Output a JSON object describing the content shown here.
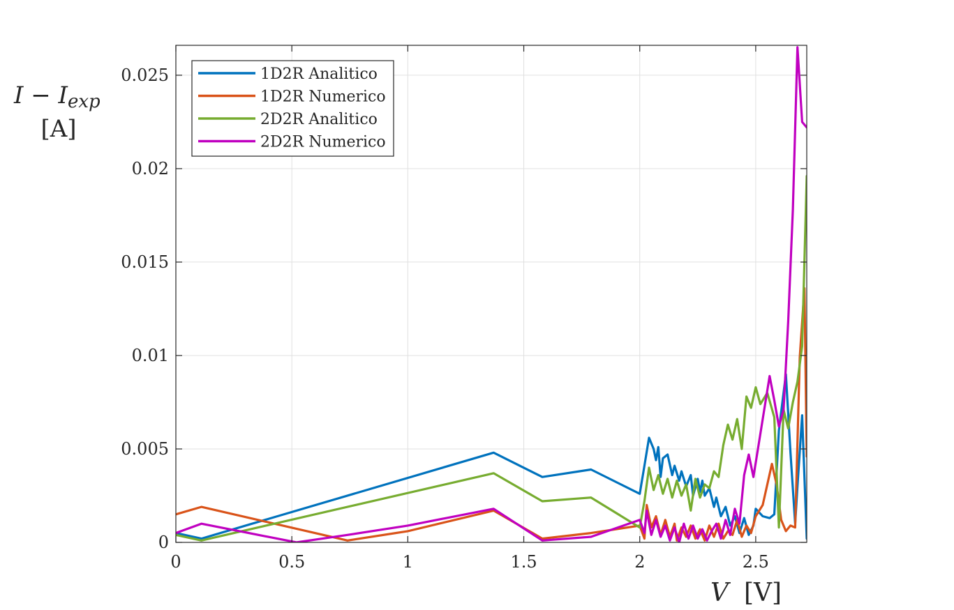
{
  "chart_data": {
    "type": "line",
    "ylabel_main": "I − I",
    "ylabel_sub": "exp",
    "ylabel_unit": "[A]",
    "xlabel_main": "V",
    "xlabel_unit": "[V]",
    "xlim": [
      0,
      2.72
    ],
    "ylim": [
      0,
      0.0266
    ],
    "xticks": [
      0,
      0.5,
      1,
      1.5,
      2,
      2.5
    ],
    "xtick_labels": [
      "0",
      "0.5",
      "1",
      "1.5",
      "2",
      "2.5"
    ],
    "yticks": [
      0,
      0.005,
      0.01,
      0.015,
      0.02,
      0.025
    ],
    "ytick_labels": [
      "0",
      "0.005",
      "0.01",
      "0.015",
      "0.02",
      "0.025"
    ],
    "grid": true,
    "legend_position": "top-left",
    "series": [
      {
        "name": "1D2R Analitico",
        "color": "#0072BD",
        "x": [
          0,
          0.11,
          1.37,
          1.58,
          1.79,
          2.0,
          2.02,
          2.04,
          2.06,
          2.07,
          2.08,
          2.09,
          2.1,
          2.12,
          2.14,
          2.15,
          2.17,
          2.18,
          2.2,
          2.22,
          2.23,
          2.25,
          2.26,
          2.27,
          2.28,
          2.3,
          2.32,
          2.33,
          2.35,
          2.37,
          2.39,
          2.41,
          2.43,
          2.45,
          2.47,
          2.49,
          2.5,
          2.53,
          2.56,
          2.58,
          2.6,
          2.63,
          2.65,
          2.67,
          2.68,
          2.7,
          2.72
        ],
        "y": [
          0.0005,
          0.0002,
          0.0048,
          0.0035,
          0.0039,
          0.0026,
          0.0041,
          0.0056,
          0.005,
          0.0044,
          0.0051,
          0.0035,
          0.0045,
          0.0047,
          0.0036,
          0.0041,
          0.0033,
          0.0038,
          0.003,
          0.0036,
          0.0025,
          0.0034,
          0.0027,
          0.0033,
          0.0025,
          0.0029,
          0.0019,
          0.0024,
          0.0014,
          0.0019,
          0.0009,
          0.0014,
          0.0005,
          0.0013,
          0.0004,
          0.0009,
          0.0018,
          0.0014,
          0.0013,
          0.0015,
          0.006,
          0.009,
          0.0048,
          0.001,
          0.003,
          0.0068,
          0.0002
        ]
      },
      {
        "name": "1D2R Numerico",
        "color": "#D95319",
        "x": [
          0,
          0.11,
          0.74,
          1.0,
          1.37,
          1.58,
          1.79,
          2.0,
          2.02,
          2.03,
          2.05,
          2.07,
          2.09,
          2.11,
          2.13,
          2.15,
          2.16,
          2.18,
          2.2,
          2.22,
          2.24,
          2.26,
          2.28,
          2.3,
          2.32,
          2.34,
          2.36,
          2.38,
          2.4,
          2.42,
          2.44,
          2.46,
          2.48,
          2.5,
          2.53,
          2.57,
          2.59,
          2.61,
          2.63,
          2.65,
          2.67,
          2.69,
          2.71,
          2.72
        ],
        "y": [
          0.0015,
          0.0019,
          0.0001,
          0.0006,
          0.0017,
          0.0002,
          0.0005,
          0.0009,
          0.0002,
          0.002,
          0.0008,
          0.0014,
          0.0004,
          0.0012,
          0.0003,
          0.001,
          0.0001,
          0.0008,
          0.0003,
          0.0009,
          0.0002,
          0.0007,
          0.0001,
          0.0009,
          0.0003,
          0.001,
          0.0002,
          0.0006,
          0.0004,
          0.0012,
          0.0003,
          0.0009,
          0.0005,
          0.0014,
          0.002,
          0.0042,
          0.0031,
          0.0012,
          0.0006,
          0.0009,
          0.0008,
          0.0099,
          0.0136,
          0.0046
        ]
      },
      {
        "name": "2D2R Analitico",
        "color": "#77AC30",
        "x": [
          0,
          0.11,
          1.37,
          1.58,
          1.79,
          2.0,
          2.02,
          2.04,
          2.06,
          2.08,
          2.1,
          2.12,
          2.14,
          2.16,
          2.18,
          2.2,
          2.22,
          2.24,
          2.26,
          2.28,
          2.3,
          2.32,
          2.34,
          2.36,
          2.38,
          2.4,
          2.42,
          2.44,
          2.46,
          2.48,
          2.5,
          2.52,
          2.55,
          2.58,
          2.6,
          2.62,
          2.64,
          2.66,
          2.68,
          2.7,
          2.72
        ],
        "y": [
          0.0004,
          0.0001,
          0.0037,
          0.0022,
          0.0024,
          0.0008,
          0.0022,
          0.004,
          0.0028,
          0.0036,
          0.0026,
          0.0034,
          0.0024,
          0.0033,
          0.0025,
          0.0031,
          0.0017,
          0.0034,
          0.0024,
          0.0031,
          0.0029,
          0.0038,
          0.0035,
          0.0052,
          0.0063,
          0.0055,
          0.0066,
          0.005,
          0.0078,
          0.0072,
          0.0083,
          0.0074,
          0.008,
          0.0067,
          0.0008,
          0.0071,
          0.0061,
          0.0075,
          0.0086,
          0.0105,
          0.0196
        ]
      },
      {
        "name": "2D2R Numerico",
        "color": "#C000C0",
        "x": [
          0,
          0.11,
          0.52,
          0.74,
          1.0,
          1.37,
          1.58,
          1.79,
          2.0,
          2.02,
          2.03,
          2.05,
          2.07,
          2.09,
          2.11,
          2.13,
          2.15,
          2.17,
          2.19,
          2.21,
          2.23,
          2.25,
          2.27,
          2.29,
          2.31,
          2.33,
          2.35,
          2.37,
          2.39,
          2.41,
          2.43,
          2.45,
          2.47,
          2.49,
          2.52,
          2.56,
          2.58,
          2.6,
          2.62,
          2.64,
          2.66,
          2.68,
          2.7,
          2.72
        ],
        "y": [
          0.0005,
          0.001,
          0.0,
          0.0004,
          0.0009,
          0.0018,
          0.0001,
          0.0003,
          0.0012,
          0.0005,
          0.0017,
          0.0004,
          0.0012,
          0.0003,
          0.0009,
          0.0001,
          0.0008,
          0.0,
          0.001,
          0.0002,
          0.0009,
          0.0002,
          0.0007,
          0.0001,
          0.0006,
          0.001,
          0.0002,
          0.0012,
          0.0004,
          0.0018,
          0.001,
          0.0036,
          0.0047,
          0.0035,
          0.0058,
          0.0089,
          0.0076,
          0.0062,
          0.0071,
          0.0118,
          0.0178,
          0.0265,
          0.0225,
          0.0222
        ]
      }
    ]
  }
}
